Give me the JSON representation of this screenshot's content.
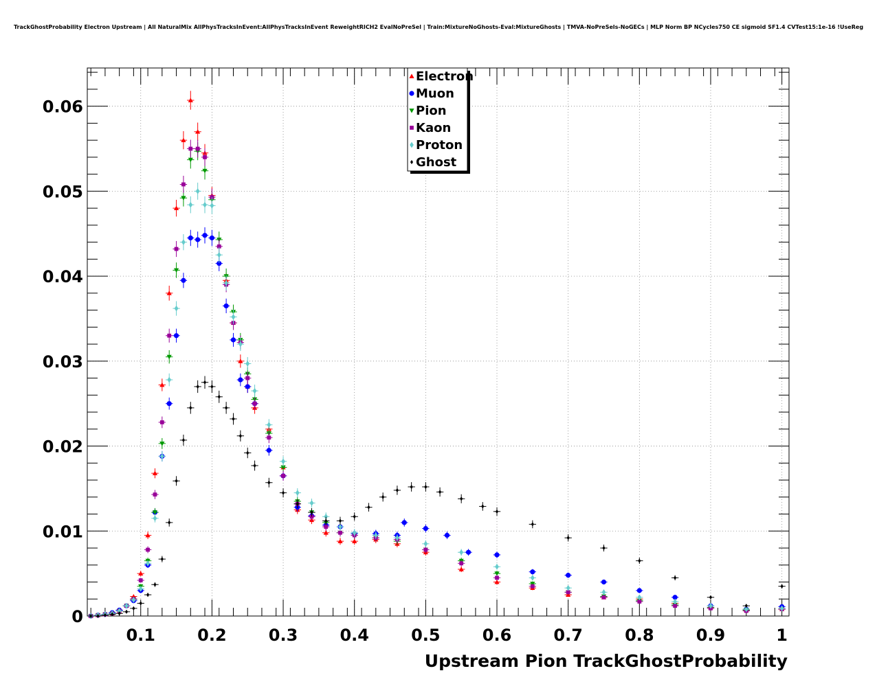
{
  "chart_data": {
    "type": "scatter",
    "title": "TrackGhostProbability Electron Upstream | All NaturalMix AllPhysTracksInEvent:AllPhysTracksInEvent ReweightRICH2 EvalNoPreSel | Train:MixtureNoGhosts-Eval:MixtureGhosts | TMVA-NoPreSels-NoGECs | MLP Norm BP NCycles750 CE sigmoid SF1.4 CVTest15:1e-16 !UseReg",
    "xlabel": "Upstream Pion TrackGhostProbability",
    "ylabel": "",
    "xlim": [
      0.025,
      1.01
    ],
    "ylim": [
      0,
      0.0645
    ],
    "xticks": [
      "0.1",
      "0.2",
      "0.3",
      "0.4",
      "0.5",
      "0.6",
      "0.7",
      "0.8",
      "0.9",
      "1"
    ],
    "yticks": [
      "0",
      "0.01",
      "0.02",
      "0.03",
      "0.04",
      "0.05",
      "0.06"
    ],
    "grid": true,
    "legend_position": "top-center",
    "bin_width": 0.01,
    "series": [
      {
        "name": "Electron",
        "color": "#ff0000",
        "marker": "triangle-up",
        "x": [
          0.03,
          0.04,
          0.05,
          0.06,
          0.07,
          0.08,
          0.09,
          0.1,
          0.11,
          0.12,
          0.13,
          0.14,
          0.15,
          0.16,
          0.17,
          0.18,
          0.19,
          0.2,
          0.22,
          0.23,
          0.24,
          0.25,
          0.26,
          0.28,
          0.3,
          0.32,
          0.34,
          0.36,
          0.38,
          0.4,
          0.43,
          0.46,
          0.5,
          0.55,
          0.6,
          0.65,
          0.7,
          0.75,
          0.8,
          0.85,
          0.9,
          0.95,
          1.0
        ],
        "y": [
          0.0,
          0.0001,
          0.0002,
          0.0003,
          0.0006,
          0.0012,
          0.0023,
          0.005,
          0.0095,
          0.0168,
          0.0272,
          0.038,
          0.048,
          0.056,
          0.0607,
          0.057,
          0.0545,
          0.0495,
          0.0395,
          0.0345,
          0.03,
          0.027,
          0.0245,
          0.022,
          0.0175,
          0.0125,
          0.0113,
          0.0098,
          0.0088,
          0.0088,
          0.009,
          0.0085,
          0.0075,
          0.0055,
          0.004,
          0.0033,
          0.0025,
          0.0022,
          0.002,
          0.0015,
          0.001,
          0.0007,
          0.0008
        ]
      },
      {
        "name": "Muon",
        "color": "#0000ff",
        "marker": "circle",
        "x": [
          0.03,
          0.04,
          0.05,
          0.06,
          0.07,
          0.08,
          0.09,
          0.1,
          0.11,
          0.12,
          0.13,
          0.14,
          0.15,
          0.16,
          0.17,
          0.18,
          0.19,
          0.2,
          0.21,
          0.22,
          0.23,
          0.24,
          0.25,
          0.26,
          0.28,
          0.3,
          0.32,
          0.34,
          0.36,
          0.38,
          0.4,
          0.43,
          0.46,
          0.47,
          0.5,
          0.53,
          0.56,
          0.6,
          0.65,
          0.7,
          0.75,
          0.8,
          0.85,
          0.9,
          0.95,
          1.0
        ],
        "y": [
          0.0,
          0.0001,
          0.0002,
          0.0004,
          0.0007,
          0.0012,
          0.0018,
          0.003,
          0.006,
          0.0122,
          0.0188,
          0.025,
          0.033,
          0.0395,
          0.0445,
          0.0443,
          0.0448,
          0.0445,
          0.0415,
          0.0365,
          0.0325,
          0.0278,
          0.027,
          0.025,
          0.0195,
          0.0165,
          0.0128,
          0.0118,
          0.0107,
          0.0105,
          0.0097,
          0.0097,
          0.0095,
          0.011,
          0.0103,
          0.0095,
          0.0075,
          0.0072,
          0.0052,
          0.0048,
          0.004,
          0.003,
          0.0022,
          0.0012,
          0.0008,
          0.0011
        ]
      },
      {
        "name": "Pion",
        "color": "#009900",
        "marker": "triangle-down",
        "x": [
          0.03,
          0.04,
          0.05,
          0.06,
          0.07,
          0.08,
          0.09,
          0.1,
          0.11,
          0.12,
          0.13,
          0.14,
          0.15,
          0.16,
          0.17,
          0.18,
          0.19,
          0.2,
          0.21,
          0.22,
          0.23,
          0.24,
          0.25,
          0.26,
          0.28,
          0.3,
          0.32,
          0.34,
          0.36,
          0.38,
          0.4,
          0.43,
          0.46,
          0.5,
          0.55,
          0.6,
          0.65,
          0.7,
          0.75,
          0.8,
          0.85,
          0.9,
          0.95,
          1.0
        ],
        "y": [
          0.0,
          0.0001,
          0.0002,
          0.0003,
          0.0006,
          0.0012,
          0.002,
          0.0035,
          0.0065,
          0.0122,
          0.0203,
          0.0305,
          0.0407,
          0.0492,
          0.0537,
          0.0547,
          0.0524,
          0.049,
          0.0443,
          0.04,
          0.0358,
          0.0325,
          0.0285,
          0.0255,
          0.0215,
          0.0175,
          0.0135,
          0.0122,
          0.011,
          0.0098,
          0.0095,
          0.0092,
          0.0088,
          0.0078,
          0.0065,
          0.005,
          0.0038,
          0.0028,
          0.0023,
          0.0018,
          0.0013,
          0.001,
          0.0007,
          0.0008
        ]
      },
      {
        "name": "Kaon",
        "color": "#990099",
        "marker": "square",
        "x": [
          0.03,
          0.04,
          0.05,
          0.06,
          0.07,
          0.08,
          0.09,
          0.1,
          0.11,
          0.12,
          0.13,
          0.14,
          0.15,
          0.16,
          0.17,
          0.18,
          0.19,
          0.2,
          0.21,
          0.22,
          0.23,
          0.24,
          0.25,
          0.26,
          0.28,
          0.3,
          0.32,
          0.34,
          0.36,
          0.38,
          0.4,
          0.43,
          0.46,
          0.5,
          0.55,
          0.6,
          0.65,
          0.7,
          0.75,
          0.8,
          0.85,
          0.9,
          0.95,
          1.0
        ],
        "y": [
          0.0,
          0.0001,
          0.0002,
          0.0003,
          0.0006,
          0.0012,
          0.002,
          0.0042,
          0.0078,
          0.0143,
          0.0228,
          0.033,
          0.0432,
          0.0508,
          0.055,
          0.055,
          0.054,
          0.0493,
          0.0435,
          0.039,
          0.0345,
          0.0322,
          0.028,
          0.025,
          0.021,
          0.0165,
          0.0132,
          0.0117,
          0.0105,
          0.0098,
          0.0095,
          0.0092,
          0.009,
          0.0078,
          0.0062,
          0.0045,
          0.0035,
          0.0028,
          0.0022,
          0.0017,
          0.0012,
          0.0009,
          0.0006,
          0.0008
        ]
      },
      {
        "name": "Proton",
        "color": "#66cccc",
        "marker": "diamond",
        "x": [
          0.03,
          0.04,
          0.05,
          0.06,
          0.07,
          0.08,
          0.09,
          0.1,
          0.11,
          0.12,
          0.13,
          0.14,
          0.15,
          0.16,
          0.17,
          0.18,
          0.19,
          0.2,
          0.21,
          0.22,
          0.23,
          0.24,
          0.25,
          0.26,
          0.28,
          0.3,
          0.32,
          0.34,
          0.36,
          0.38,
          0.4,
          0.43,
          0.46,
          0.5,
          0.55,
          0.6,
          0.65,
          0.7,
          0.75,
          0.8,
          0.85,
          0.9,
          0.95,
          1.0
        ],
        "y": [
          0.0,
          0.0001,
          0.0002,
          0.0003,
          0.0006,
          0.0012,
          0.0019,
          0.0032,
          0.0062,
          0.0115,
          0.0188,
          0.0278,
          0.0362,
          0.044,
          0.0484,
          0.05,
          0.0484,
          0.0483,
          0.0425,
          0.0392,
          0.0352,
          0.032,
          0.0297,
          0.0265,
          0.0225,
          0.0182,
          0.0145,
          0.0133,
          0.0117,
          0.0105,
          0.0098,
          0.0095,
          0.0092,
          0.0085,
          0.0075,
          0.0058,
          0.0045,
          0.0033,
          0.0028,
          0.0022,
          0.0017,
          0.0012,
          0.0008,
          0.0009
        ]
      },
      {
        "name": "Ghost",
        "color": "#000000",
        "marker": "diamond",
        "x": [
          0.03,
          0.04,
          0.05,
          0.06,
          0.07,
          0.08,
          0.09,
          0.1,
          0.11,
          0.12,
          0.13,
          0.14,
          0.15,
          0.16,
          0.17,
          0.18,
          0.19,
          0.2,
          0.21,
          0.22,
          0.23,
          0.24,
          0.25,
          0.26,
          0.28,
          0.3,
          0.32,
          0.34,
          0.36,
          0.38,
          0.4,
          0.42,
          0.44,
          0.46,
          0.48,
          0.5,
          0.52,
          0.55,
          0.58,
          0.6,
          0.65,
          0.7,
          0.75,
          0.8,
          0.85,
          0.9,
          0.95,
          1.0
        ],
        "y": [
          0.0,
          0.0,
          0.0001,
          0.0002,
          0.0003,
          0.0005,
          0.0009,
          0.0015,
          0.0025,
          0.0037,
          0.0067,
          0.011,
          0.0159,
          0.0207,
          0.0245,
          0.027,
          0.0275,
          0.027,
          0.0258,
          0.0245,
          0.0232,
          0.0212,
          0.0192,
          0.0177,
          0.0157,
          0.0145,
          0.0132,
          0.0122,
          0.0112,
          0.0112,
          0.0117,
          0.0128,
          0.014,
          0.0148,
          0.0152,
          0.0152,
          0.0146,
          0.0138,
          0.0129,
          0.0123,
          0.0108,
          0.0092,
          0.008,
          0.0065,
          0.0045,
          0.0022,
          0.0012,
          0.0035
        ]
      }
    ]
  }
}
